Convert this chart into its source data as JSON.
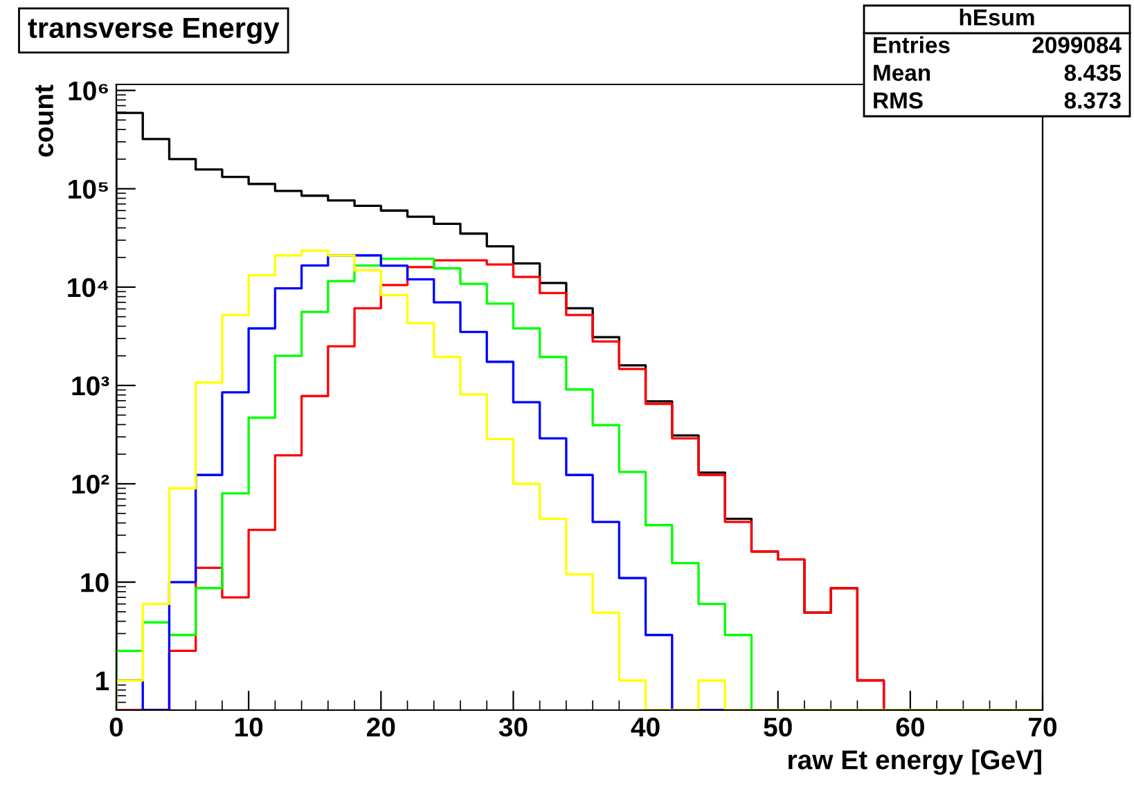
{
  "chart_data": {
    "type": "histogram",
    "title": "transverse Energy",
    "xlabel": "raw Et energy [GeV]",
    "ylabel": "count",
    "bins": [
      0,
      2,
      4,
      6,
      8,
      10,
      12,
      14,
      16,
      18,
      20,
      22,
      24,
      26,
      28,
      30,
      32,
      34,
      36,
      38,
      40,
      42,
      44,
      46,
      48,
      50,
      52,
      54,
      56,
      58,
      60,
      62,
      64,
      66,
      68,
      70
    ],
    "series": [
      {
        "color": "#000000",
        "values": [
          590000,
          320000,
          200000,
          157000,
          132000,
          112000,
          95000,
          85000,
          76000,
          67000,
          60000,
          52000,
          44000,
          35000,
          26000,
          17400,
          11000,
          6100,
          3100,
          1600,
          690,
          310,
          130,
          44,
          20.5,
          17,
          4.9,
          8.7,
          1,
          null,
          null,
          null,
          null,
          null,
          null
        ]
      },
      {
        "color": "#ff0000",
        "values": [
          null,
          null,
          2,
          14,
          7,
          34,
          195,
          780,
          2500,
          6100,
          10500,
          16000,
          18700,
          18700,
          17000,
          12700,
          8700,
          5200,
          2800,
          1470,
          650,
          290,
          123,
          41,
          20.5,
          17,
          4.9,
          8.7,
          1,
          null,
          null,
          null,
          null,
          null,
          null
        ]
      },
      {
        "color": "#00ff00",
        "values": [
          2,
          3.9,
          2.9,
          8.7,
          80,
          470,
          2000,
          5600,
          11500,
          16600,
          19400,
          19400,
          15500,
          10800,
          6800,
          3800,
          1950,
          910,
          395,
          132,
          38,
          15.6,
          6,
          2.9,
          null,
          null,
          null,
          null,
          null,
          null,
          null,
          null,
          null,
          null,
          null
        ]
      },
      {
        "color": "#0000ff",
        "values": [
          1,
          null,
          10,
          123,
          850,
          3800,
          9700,
          16600,
          21000,
          21000,
          16500,
          12000,
          7000,
          3500,
          1740,
          675,
          290,
          123,
          41,
          11,
          2.9,
          null,
          null,
          null,
          null,
          null,
          null,
          null,
          null,
          null,
          null,
          null,
          null,
          null,
          null
        ]
      },
      {
        "color": "#ffff00",
        "values": [
          1,
          6,
          90,
          1070,
          5200,
          13200,
          21000,
          23500,
          21000,
          14800,
          8300,
          4300,
          1950,
          810,
          285,
          100,
          44,
          12,
          4.9,
          1,
          null,
          null,
          1,
          null,
          null,
          null,
          null,
          null,
          null,
          null,
          null,
          null,
          null,
          null,
          null
        ]
      }
    ],
    "log": "y",
    "grid": false,
    "legend": false,
    "xlim": [
      0,
      70
    ],
    "xticks": [
      0,
      10,
      20,
      30,
      40,
      50,
      60,
      70
    ],
    "ylim": [
      0.5,
      1150000
    ],
    "yticks": [
      {
        "value": 1,
        "label": "1"
      },
      {
        "value": 10,
        "label": "10"
      },
      {
        "value": 100,
        "label": "10²"
      },
      {
        "value": 1000,
        "label": "10³"
      },
      {
        "value": 10000,
        "label": "10⁴"
      },
      {
        "value": 100000,
        "label": "10⁵"
      },
      {
        "value": 1000000,
        "label": "10⁶"
      }
    ],
    "annotations": [
      "hEsum",
      "Entries 2099084",
      "Mean 8.435",
      "RMS 8.373"
    ]
  }
}
